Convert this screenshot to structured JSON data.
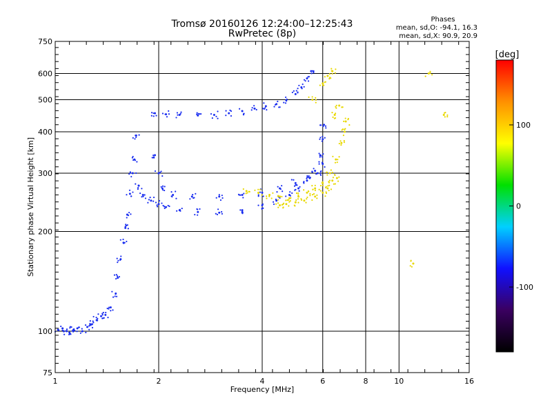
{
  "chart_data": {
    "type": "scatter",
    "title": "Tromsø 20160126 12:24:00–12:25:43",
    "subtitle": "RwPretec (8p)",
    "xlabel": "Frequency [MHz]",
    "ylabel": "Stationary phase Virtual Height [km]",
    "x_scale": "log",
    "y_scale": "log",
    "xlim": [
      1,
      16
    ],
    "ylim": [
      75,
      750
    ],
    "x_ticks": [
      1,
      2,
      4,
      6,
      8,
      10,
      16
    ],
    "y_ticks": [
      75,
      100,
      200,
      300,
      400,
      500,
      600,
      750
    ],
    "grid": true,
    "legend": {
      "title": "Phases",
      "line1": "mean, sd,O: -94.1, 16.3",
      "line2": "mean, sd,X:  90.9, 20.9"
    },
    "colorbar": {
      "label": "[deg]",
      "range": [
        -180,
        180
      ],
      "ticks": [
        -100,
        0,
        100
      ],
      "colors": [
        "#000000",
        "#3a0060",
        "#1010ff",
        "#00d0ff",
        "#00e000",
        "#ffff00",
        "#ff9000",
        "#ff0000"
      ]
    },
    "series": [
      {
        "name": "O",
        "color": "#1a2ef0",
        "phase_mean": -94.1,
        "points": [
          [
            1.02,
            101
          ],
          [
            1.05,
            102
          ],
          [
            1.08,
            100
          ],
          [
            1.1,
            99
          ],
          [
            1.13,
            101
          ],
          [
            1.16,
            102
          ],
          [
            1.2,
            100
          ],
          [
            1.24,
            103
          ],
          [
            1.28,
            105
          ],
          [
            1.32,
            108
          ],
          [
            1.36,
            111
          ],
          [
            1.4,
            112
          ],
          [
            1.45,
            118
          ],
          [
            1.5,
            130
          ],
          [
            1.52,
            145
          ],
          [
            1.55,
            165
          ],
          [
            1.58,
            185
          ],
          [
            1.6,
            205
          ],
          [
            1.62,
            225
          ],
          [
            1.65,
            260
          ],
          [
            1.68,
            300
          ],
          [
            1.7,
            330
          ],
          [
            1.72,
            390
          ],
          [
            1.75,
            275
          ],
          [
            1.8,
            258
          ],
          [
            1.9,
            248
          ],
          [
            2.0,
            242
          ],
          [
            2.1,
            237
          ],
          [
            2.3,
            232
          ],
          [
            2.6,
            229
          ],
          [
            3.0,
            228
          ],
          [
            3.5,
            232
          ],
          [
            4.0,
            240
          ],
          [
            4.4,
            248
          ],
          [
            4.8,
            258
          ],
          [
            5.1,
            270
          ],
          [
            5.4,
            285
          ],
          [
            5.7,
            305
          ],
          [
            5.9,
            340
          ],
          [
            6.0,
            380
          ],
          [
            6.05,
            420
          ],
          [
            6.0,
            320
          ],
          [
            5.8,
            300
          ],
          [
            5.5,
            290
          ],
          [
            5.0,
            280
          ],
          [
            4.5,
            270
          ],
          [
            4.0,
            262
          ],
          [
            3.5,
            258
          ],
          [
            3.0,
            255
          ],
          [
            2.5,
            255
          ],
          [
            2.2,
            258
          ],
          [
            2.05,
            270
          ],
          [
            2.0,
            300
          ],
          [
            1.95,
            340
          ],
          [
            1.95,
            455
          ],
          [
            2.1,
            452
          ],
          [
            2.3,
            450
          ],
          [
            2.6,
            448
          ],
          [
            2.9,
            450
          ],
          [
            3.2,
            455
          ],
          [
            3.5,
            462
          ],
          [
            3.8,
            470
          ],
          [
            4.1,
            478
          ],
          [
            4.4,
            485
          ],
          [
            4.7,
            498
          ],
          [
            5.0,
            520
          ],
          [
            5.2,
            545
          ],
          [
            5.4,
            580
          ],
          [
            5.55,
            610
          ]
        ]
      },
      {
        "name": "X",
        "color": "#e8d800",
        "phase_mean": 90.9,
        "points": [
          [
            3.6,
            265
          ],
          [
            3.9,
            262
          ],
          [
            4.2,
            258
          ],
          [
            4.5,
            255
          ],
          [
            4.8,
            252
          ],
          [
            5.1,
            255
          ],
          [
            5.4,
            262
          ],
          [
            5.7,
            270
          ],
          [
            6.0,
            280
          ],
          [
            6.3,
            300
          ],
          [
            6.55,
            330
          ],
          [
            6.8,
            370
          ],
          [
            6.95,
            400
          ],
          [
            7.0,
            430
          ],
          [
            6.6,
            290
          ],
          [
            6.4,
            285
          ],
          [
            6.2,
            270
          ],
          [
            6.0,
            262
          ],
          [
            5.7,
            255
          ],
          [
            5.3,
            248
          ],
          [
            5.0,
            245
          ],
          [
            4.7,
            242
          ],
          [
            4.5,
            240
          ],
          [
            5.6,
            500
          ],
          [
            6.0,
            560
          ],
          [
            6.2,
            590
          ],
          [
            6.4,
            610
          ],
          [
            6.5,
            450
          ],
          [
            6.7,
            480
          ],
          [
            11.0,
            160
          ],
          [
            13.5,
            450
          ],
          [
            12.2,
            600
          ]
        ]
      }
    ]
  }
}
